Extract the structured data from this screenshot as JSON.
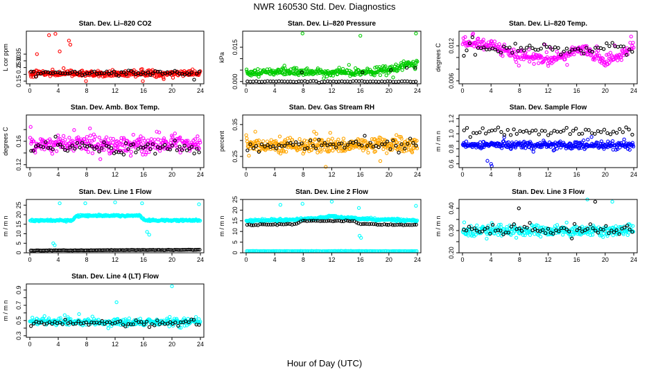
{
  "page_title": "NWR  160530  Std. Dev. Diagnostics",
  "x_axis_label": "Hour of Day (UTC)",
  "colors": {
    "red": "#ff0000",
    "green": "#00cc00",
    "magenta": "#ff00ff",
    "orange": "#ffa500",
    "blue": "#0000ff",
    "cyan": "#00ffff",
    "black": "#000000"
  },
  "chart_data": [
    {
      "id": "co2",
      "type": "scatter",
      "title": "Stan. Dev. Li–820 CO2",
      "ylabel": "L cor ppm",
      "xlim": [
        0,
        24
      ],
      "xticks": [
        0,
        4,
        8,
        12,
        16,
        20,
        24
      ],
      "ylim": [
        0.13,
        0.52
      ],
      "yticks": [
        0.15,
        0.2,
        0.25,
        0.3,
        0.35
      ],
      "ytick_labels": [
        "0.15",
        "",
        "0.25",
        "0.30",
        "0.35"
      ],
      "series": [
        {
          "name": "main",
          "color": "#ff0000",
          "kind": "noisy",
          "center": 0.205,
          "spread": 0.03,
          "n": 320,
          "outliers": [
            [
              2.7,
              0.49
            ],
            [
              3.6,
              0.5
            ],
            [
              4.2,
              0.37
            ],
            [
              5.5,
              0.45
            ],
            [
              5.7,
              0.42
            ],
            [
              1.0,
              0.35
            ],
            [
              7.9,
              0.15
            ],
            [
              15.9,
              0.15
            ]
          ]
        },
        {
          "name": "reference",
          "color": "#000000",
          "kind": "noisy",
          "center": 0.21,
          "spread": 0.025,
          "n": 70
        }
      ]
    },
    {
      "id": "pressure",
      "type": "scatter",
      "title": "Stan. Dev. Li–820 Pressure",
      "ylabel": "kPa",
      "xlim": [
        0,
        24
      ],
      "xticks": [
        0,
        4,
        8,
        12,
        16,
        20,
        24
      ],
      "ylim": [
        -0.001,
        0.022
      ],
      "yticks": [
        0.0,
        0.005,
        0.01,
        0.015
      ],
      "ytick_labels": [
        "0.000",
        "",
        "",
        "0.015"
      ],
      "series": [
        {
          "name": "main",
          "color": "#00cc00",
          "kind": "noisy",
          "center": 0.004,
          "spread": 0.002,
          "n": 330,
          "ramp": [
            [
              18,
              0.004
            ],
            [
              24,
              0.008
            ]
          ],
          "outliers": [
            [
              7.9,
              0.021
            ],
            [
              16.0,
              0.02
            ],
            [
              23.8,
              0.021
            ]
          ]
        },
        {
          "name": "reference",
          "color": "#000000",
          "kind": "noisy",
          "center": 0.0,
          "spread": 0.0003,
          "n": 60,
          "outliers": [
            [
              7.8,
              0.004
            ],
            [
              16.3,
              0.004
            ],
            [
              20.3,
              0.005
            ],
            [
              22.5,
              0.006
            ],
            [
              23.7,
              0.006
            ]
          ]
        }
      ]
    },
    {
      "id": "temp",
      "type": "scatter",
      "title": "Stan. Dev. Li–820 Temp.",
      "ylabel": "degrees C",
      "xlim": [
        0,
        24
      ],
      "xticks": [
        0,
        4,
        8,
        12,
        16,
        20,
        24
      ],
      "ylim": [
        0.0055,
        0.0145
      ],
      "yticks": [
        0.006,
        0.008,
        0.01,
        0.012
      ],
      "ytick_labels": [
        "0.006",
        "",
        "",
        "0.012"
      ],
      "series": [
        {
          "name": "main",
          "color": "#ff00ff",
          "kind": "noisy",
          "center": 0.011,
          "spread": 0.0012,
          "n": 300,
          "ramp": [
            [
              0,
              0.0125
            ],
            [
              4,
              0.0122
            ],
            [
              8,
              0.0105
            ],
            [
              12,
              0.0095
            ],
            [
              17,
              0.0115
            ],
            [
              20,
              0.009
            ],
            [
              24,
              0.0118
            ]
          ]
        },
        {
          "name": "reference",
          "color": "#000000",
          "kind": "noisy",
          "center": 0.0115,
          "spread": 0.001,
          "n": 60
        }
      ]
    },
    {
      "id": "ambbox",
      "type": "scatter",
      "title": "Stan. Dev. Amb. Box Temp.",
      "ylabel": "degrees C",
      "xlim": [
        0,
        24
      ],
      "xticks": [
        0,
        4,
        8,
        12,
        16,
        20,
        24
      ],
      "ylim": [
        0.115,
        0.205
      ],
      "yticks": [
        0.12,
        0.14,
        0.16,
        0.18
      ],
      "ytick_labels": [
        "0.12",
        "",
        "0.16",
        ""
      ],
      "series": [
        {
          "name": "main",
          "color": "#ff00ff",
          "kind": "noisy",
          "center": 0.155,
          "spread": 0.017,
          "n": 330
        },
        {
          "name": "reference",
          "color": "#000000",
          "kind": "noisy",
          "center": 0.148,
          "spread": 0.012,
          "n": 70
        }
      ]
    },
    {
      "id": "rh",
      "type": "scatter",
      "title": "Stan. Dev. Gas Stream RH",
      "ylabel": "percent",
      "xlim": [
        0,
        24
      ],
      "xticks": [
        0,
        4,
        8,
        12,
        16,
        20,
        24
      ],
      "ylim": [
        0.215,
        0.38
      ],
      "yticks": [
        0.25,
        0.3,
        0.35
      ],
      "ytick_labels": [
        "0.25",
        "",
        "0.35"
      ],
      "series": [
        {
          "name": "main",
          "color": "#ffa500",
          "kind": "noisy",
          "center": 0.285,
          "spread": 0.028,
          "n": 380
        },
        {
          "name": "reference",
          "color": "#000000",
          "kind": "noisy",
          "center": 0.285,
          "spread": 0.025,
          "n": 60
        }
      ]
    },
    {
      "id": "sampleflow",
      "type": "scatter",
      "title": "Stan. Dev. Sample Flow",
      "ylabel": "m / m n",
      "xlim": [
        0,
        24
      ],
      "xticks": [
        0,
        4,
        8,
        12,
        16,
        20,
        24
      ],
      "ylim": [
        0.55,
        1.25
      ],
      "yticks": [
        0.6,
        0.7,
        0.8,
        0.9,
        1.0,
        1.1,
        1.2
      ],
      "ytick_labels": [
        "0.6",
        "",
        "0.8",
        "",
        "1.0",
        "",
        "1.2"
      ],
      "series": [
        {
          "name": "main",
          "color": "#0000ff",
          "kind": "noisy",
          "center": 0.85,
          "spread": 0.06,
          "n": 330,
          "outliers": [
            [
              4.0,
              0.6
            ],
            [
              4.1,
              0.57
            ],
            [
              3.5,
              0.64
            ]
          ]
        },
        {
          "name": "reference",
          "color": "#000000",
          "kind": "noisy",
          "center": 1.03,
          "spread": 0.08,
          "n": 55
        }
      ]
    },
    {
      "id": "line1",
      "type": "scatter",
      "title": "Stan. Dev. Line 1 Flow",
      "ylabel": "m / m n",
      "xlim": [
        0,
        24
      ],
      "xticks": [
        0,
        4,
        8,
        12,
        16,
        20,
        24
      ],
      "ylim": [
        0,
        28
      ],
      "yticks": [
        0,
        5,
        10,
        15,
        20,
        25
      ],
      "ytick_labels": [
        "0",
        "5",
        "10",
        "15",
        "20",
        "25"
      ],
      "series": [
        {
          "name": "main",
          "color": "#00ffff",
          "kind": "band",
          "n": 320,
          "spread": 0.6,
          "ramp": [
            [
              0,
              17
            ],
            [
              6,
              17
            ],
            [
              6.6,
              19.5
            ],
            [
              15.5,
              19.5
            ],
            [
              16.2,
              17
            ],
            [
              24,
              17
            ]
          ],
          "outliers": [
            [
              4.2,
              26
            ],
            [
              7.8,
              26
            ],
            [
              12.0,
              26.5
            ],
            [
              15.8,
              26
            ],
            [
              23.8,
              25.5
            ],
            [
              3.3,
              5
            ],
            [
              3.5,
              4
            ],
            [
              16.5,
              11
            ],
            [
              16.8,
              9.5
            ]
          ]
        },
        {
          "name": "reference",
          "color": "#000000",
          "kind": "band",
          "n": 110,
          "spread": 0.15,
          "ramp": [
            [
              0,
              1.2
            ],
            [
              24,
              1.6
            ]
          ]
        }
      ]
    },
    {
      "id": "line2",
      "type": "scatter",
      "title": "Stan. Dev. Line 2 Flow",
      "ylabel": "m / m n",
      "xlim": [
        0,
        24
      ],
      "xticks": [
        0,
        4,
        8,
        12,
        16,
        20,
        24
      ],
      "ylim": [
        0,
        25
      ],
      "yticks": [
        0,
        5,
        10,
        15,
        20,
        25
      ],
      "ytick_labels": [
        "0",
        "5",
        "10",
        "15",
        "20",
        "25"
      ],
      "series": [
        {
          "name": "main",
          "color": "#00ffff",
          "kind": "band",
          "n": 320,
          "spread": 0.7,
          "ramp": [
            [
              0,
              15
            ],
            [
              7,
              15.5
            ],
            [
              12,
              17
            ],
            [
              16,
              16
            ],
            [
              24,
              15
            ]
          ],
          "outliers": [
            [
              4.8,
              22.5
            ],
            [
              7.9,
              23
            ],
            [
              12.0,
              24
            ],
            [
              15.8,
              21
            ],
            [
              23.8,
              22
            ],
            [
              15.9,
              8
            ],
            [
              16.1,
              7
            ]
          ]
        },
        {
          "name": "cyan-floor",
          "color": "#00ffff",
          "kind": "band",
          "n": 140,
          "spread": 0.1,
          "ramp": [
            [
              0,
              0.8
            ],
            [
              24,
              0.8
            ]
          ]
        },
        {
          "name": "reference",
          "color": "#000000",
          "kind": "band",
          "n": 80,
          "spread": 0.3,
          "ramp": [
            [
              0,
              13
            ],
            [
              7,
              13.5
            ],
            [
              8,
              15
            ],
            [
              15,
              15
            ],
            [
              16,
              13.5
            ],
            [
              24,
              13
            ]
          ]
        }
      ]
    },
    {
      "id": "line3",
      "type": "scatter",
      "title": "Stan. Dev. Line 3 Flow",
      "ylabel": "m / m n",
      "xlim": [
        0,
        24
      ],
      "xticks": [
        0,
        4,
        8,
        12,
        16,
        20,
        24
      ],
      "ylim": [
        0.2,
        0.44
      ],
      "yticks": [
        0.2,
        0.25,
        0.3,
        0.35,
        0.4
      ],
      "ytick_labels": [
        "0.20",
        "",
        "0.30",
        "",
        "0.40"
      ],
      "series": [
        {
          "name": "main",
          "color": "#00ffff",
          "kind": "noisy",
          "center": 0.3,
          "spread": 0.03,
          "n": 330,
          "outliers": [
            [
              17.5,
              0.44
            ],
            [
              21.0,
              0.43
            ]
          ]
        },
        {
          "name": "reference",
          "color": "#000000",
          "kind": "noisy",
          "center": 0.305,
          "spread": 0.03,
          "n": 65,
          "outliers": [
            [
              7.9,
              0.4
            ],
            [
              18.6,
              0.43
            ]
          ]
        }
      ]
    },
    {
      "id": "line4",
      "type": "scatter",
      "title": "Stan. Dev. Line 4 (LT) Flow",
      "ylabel": "m / m n",
      "xlim": [
        0,
        24
      ],
      "xticks": [
        0,
        4,
        8,
        12,
        16,
        20,
        24
      ],
      "ylim": [
        0.28,
        0.98
      ],
      "yticks": [
        0.3,
        0.4,
        0.5,
        0.6,
        0.7,
        0.8,
        0.9
      ],
      "ytick_labels": [
        "0.3",
        "",
        "0.5",
        "",
        "0.7",
        "",
        "0.9"
      ],
      "series": [
        {
          "name": "main",
          "color": "#00ffff",
          "kind": "noisy",
          "center": 0.48,
          "spread": 0.06,
          "n": 320,
          "outliers": [
            [
              20.0,
              0.95
            ],
            [
              12.2,
              0.74
            ]
          ]
        },
        {
          "name": "reference",
          "color": "#000000",
          "kind": "noisy",
          "center": 0.47,
          "spread": 0.05,
          "n": 65
        }
      ]
    }
  ]
}
